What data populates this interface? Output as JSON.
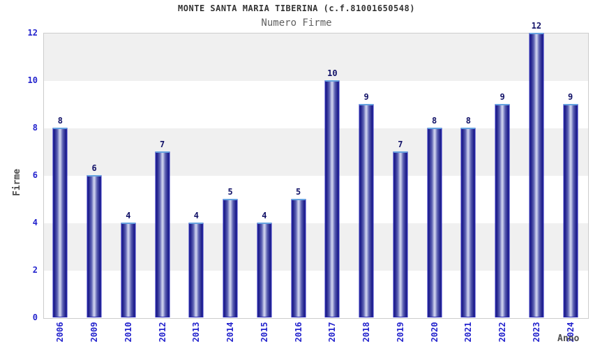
{
  "header": {
    "title": "MONTE SANTA MARIA TIBERINA (c.f.81001650548)",
    "subtitle": "Numero Firme"
  },
  "chart_data": {
    "type": "bar",
    "title": "MONTE SANTA MARIA TIBERINA (c.f.81001650548)",
    "subtitle": "Numero Firme",
    "categories": [
      "2006",
      "2009",
      "2010",
      "2012",
      "2013",
      "2014",
      "2015",
      "2016",
      "2017",
      "2018",
      "2019",
      "2020",
      "2021",
      "2022",
      "2023",
      "2024"
    ],
    "values": [
      8,
      6,
      4,
      7,
      4,
      5,
      4,
      5,
      10,
      9,
      7,
      8,
      8,
      9,
      12,
      9
    ],
    "xlabel": "Anno",
    "ylabel": "Firme",
    "ylim": [
      0,
      12
    ],
    "yticks": [
      0,
      2,
      4,
      6,
      8,
      10,
      12
    ],
    "grid": "alternating-horizontal-bands",
    "legend": "none",
    "colors": {
      "title": "#333333",
      "subtitle": "#606060",
      "axis_title": "#4d4d4d",
      "tick_label": "#2323cd",
      "value_label": "#121268",
      "band_gray": "#f0f0f0",
      "band_white": "#ffffff",
      "plot_border": "#cccccc",
      "bar_border": "#2d2dbb",
      "bar_dark": "#20208c",
      "bar_mid": "#5f64b4",
      "bar_light": "#c9cdeb",
      "bar_top_highlight": "#66a3e0"
    }
  }
}
